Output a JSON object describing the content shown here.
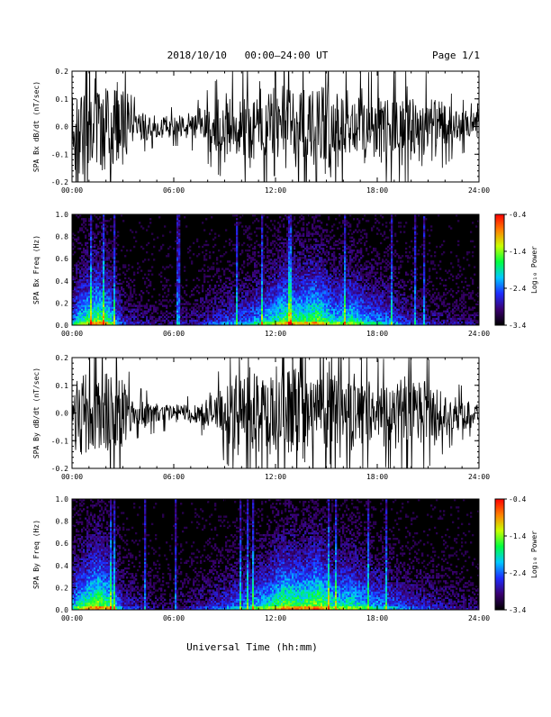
{
  "header": {
    "title": "2018/10/10   00:00–24:00 UT",
    "page": "Page 1/1"
  },
  "footer": {
    "xlabel": "Universal Time (hh:mm)"
  },
  "colors": {
    "background": "#ffffff",
    "trace": "#000000",
    "spectrogram_bg": "#000000",
    "colormap": [
      "#000000",
      "#3a0070",
      "#1e2cff",
      "#00c8ff",
      "#00ff40",
      "#c8ff00",
      "#ff8000",
      "#ff0000"
    ]
  },
  "chart_data": [
    {
      "type": "line",
      "title": "",
      "ylabel": "SPA Bx dB/dt (nT/sec)",
      "xlabel": "",
      "xlim": [
        "00:00",
        "24:00"
      ],
      "ylim": [
        -0.2,
        0.2
      ],
      "xticks": [
        "00:00",
        "06:00",
        "12:00",
        "18:00",
        "24:00"
      ],
      "yticks": [
        "-0.2",
        "-0.1",
        "0.0",
        "0.1",
        "0.2"
      ],
      "grid": false,
      "envelope": {
        "x_hours": [
          0,
          0.3,
          1,
          1.4,
          2.0,
          3.0,
          3.5,
          5,
          6.5,
          7.5,
          8.5,
          9.5,
          10.5,
          11.5,
          12.5,
          13.5,
          14.5,
          15.5,
          16.5,
          17.5,
          18.5,
          19.5,
          20.5,
          21.5,
          22.5,
          23.5,
          24
        ],
        "amplitude": [
          0.12,
          0.2,
          0.2,
          0.2,
          0.2,
          0.2,
          0.08,
          0.05,
          0.05,
          0.07,
          0.12,
          0.15,
          0.16,
          0.2,
          0.2,
          0.2,
          0.2,
          0.2,
          0.16,
          0.14,
          0.15,
          0.15,
          0.16,
          0.12,
          0.08,
          0.06,
          0.06
        ]
      }
    },
    {
      "type": "heatmap",
      "title": "",
      "ylabel": "SPA Bx Freq (Hz)",
      "xlabel": "",
      "xlim": [
        "00:00",
        "24:00"
      ],
      "ylim": [
        0.0,
        1.0
      ],
      "xticks": [
        "00:00",
        "06:00",
        "12:00",
        "18:00",
        "24:00"
      ],
      "yticks": [
        "0.0",
        "0.2",
        "0.4",
        "0.6",
        "0.8",
        "1.0"
      ],
      "colorbar": {
        "label": "Log₁₀ Power",
        "ticks": [
          "-0.4",
          "-1.4",
          "-2.4",
          "-3.4"
        ],
        "range": [
          -3.4,
          -0.4
        ]
      },
      "activity": {
        "x_hours": [
          0,
          0.5,
          1.5,
          2.2,
          3.0,
          5,
          7,
          8.5,
          10,
          11.5,
          12.5,
          13.5,
          14.5,
          15.5,
          16.5,
          17.5,
          18.5,
          20,
          22,
          24
        ],
        "level": [
          0.5,
          0.7,
          0.9,
          0.75,
          0.3,
          0.15,
          0.2,
          0.35,
          0.45,
          0.65,
          0.85,
          0.8,
          0.9,
          0.65,
          0.75,
          0.55,
          0.5,
          0.3,
          0.2,
          0.15
        ]
      }
    },
    {
      "type": "line",
      "title": "",
      "ylabel": "SPA By dB/dt (nT/sec)",
      "xlabel": "",
      "xlim": [
        "00:00",
        "24:00"
      ],
      "ylim": [
        -0.2,
        0.2
      ],
      "xticks": [
        "00:00",
        "06:00",
        "12:00",
        "18:00",
        "24:00"
      ],
      "yticks": [
        "-0.2",
        "-0.1",
        "0.0",
        "0.1",
        "0.2"
      ],
      "grid": false,
      "envelope": {
        "x_hours": [
          0,
          0.3,
          1,
          1.4,
          2.0,
          3.0,
          3.5,
          5,
          6.5,
          7.5,
          8.5,
          9.5,
          10.5,
          11.5,
          12.5,
          13.5,
          14.5,
          15.5,
          16.5,
          17.5,
          18.5,
          19.5,
          20.5,
          21.5,
          22.5,
          23.5,
          24
        ],
        "amplitude": [
          0.1,
          0.2,
          0.2,
          0.2,
          0.2,
          0.2,
          0.07,
          0.05,
          0.04,
          0.05,
          0.1,
          0.15,
          0.17,
          0.2,
          0.2,
          0.2,
          0.2,
          0.2,
          0.16,
          0.14,
          0.14,
          0.15,
          0.16,
          0.12,
          0.08,
          0.06,
          0.05
        ]
      }
    },
    {
      "type": "heatmap",
      "title": "",
      "ylabel": "SPA By Freq (Hz)",
      "xlabel": "",
      "xlim": [
        "00:00",
        "24:00"
      ],
      "ylim": [
        0.0,
        1.0
      ],
      "xticks": [
        "00:00",
        "06:00",
        "12:00",
        "18:00",
        "24:00"
      ],
      "yticks": [
        "0.0",
        "0.2",
        "0.4",
        "0.6",
        "0.8",
        "1.0"
      ],
      "colorbar": {
        "label": "Log₁₀ Power",
        "ticks": [
          "-0.4",
          "-1.4",
          "-2.4",
          "-3.4"
        ],
        "range": [
          -3.4,
          -0.4
        ]
      },
      "activity": {
        "x_hours": [
          0,
          0.5,
          1.5,
          2.2,
          3.0,
          5,
          7,
          8.5,
          10,
          11.5,
          12.5,
          13.5,
          14.5,
          15.5,
          16.5,
          17.5,
          18.5,
          20,
          22,
          24
        ],
        "level": [
          0.55,
          0.75,
          0.95,
          0.8,
          0.35,
          0.15,
          0.2,
          0.35,
          0.5,
          0.7,
          0.9,
          0.85,
          0.95,
          0.7,
          0.75,
          0.6,
          0.5,
          0.35,
          0.25,
          0.15
        ]
      }
    }
  ]
}
